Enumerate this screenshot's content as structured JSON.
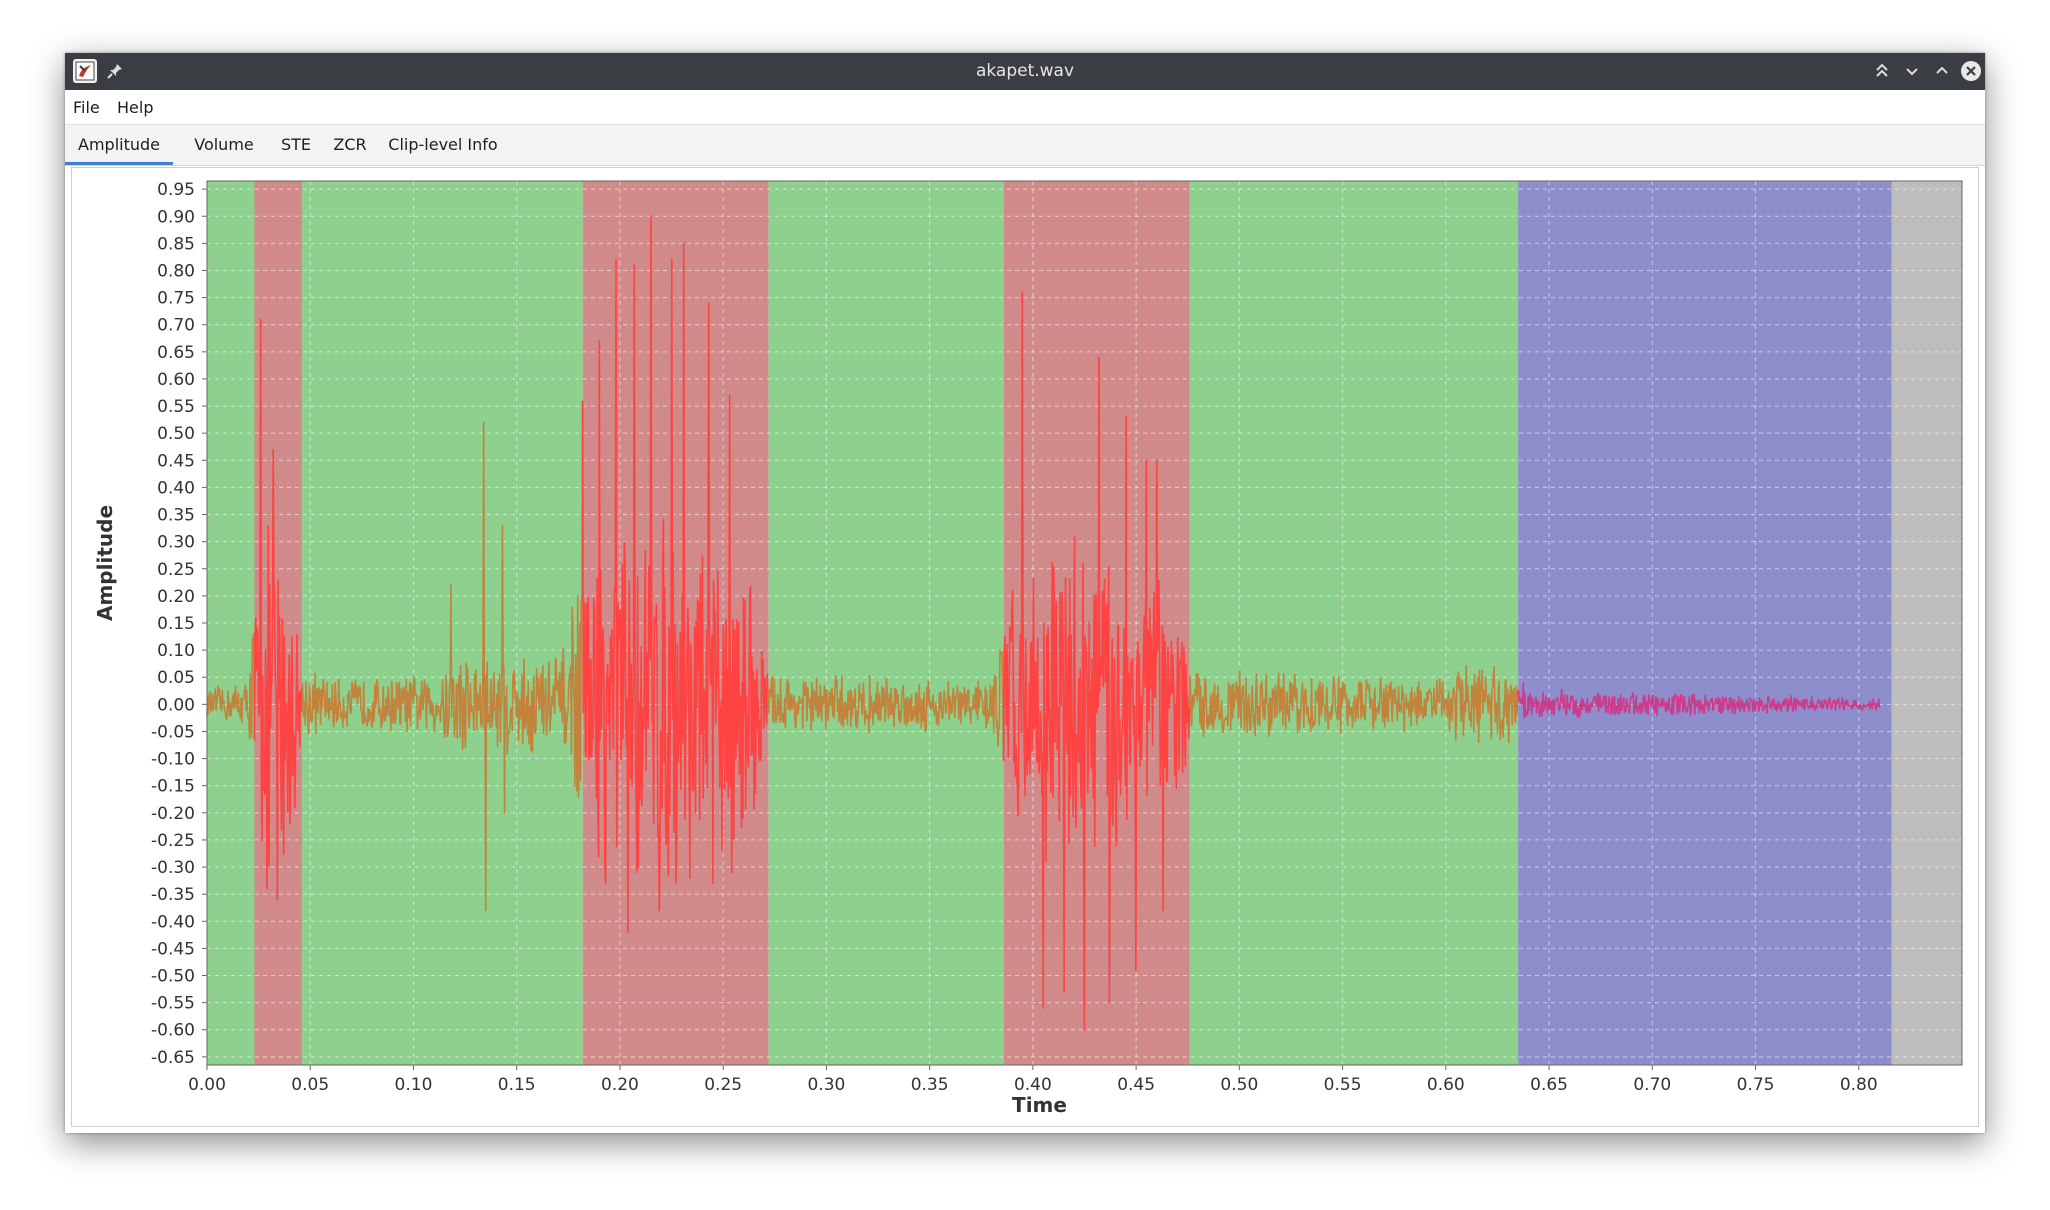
{
  "window": {
    "title": "akapet.wav"
  },
  "menu": {
    "items": [
      "File",
      "Help"
    ]
  },
  "tabs": [
    {
      "label": "Amplitude",
      "active": true
    },
    {
      "label": "Volume",
      "active": false
    },
    {
      "label": "STE",
      "active": false
    },
    {
      "label": "ZCR",
      "active": false
    },
    {
      "label": "Clip-level Info",
      "active": false
    }
  ],
  "icons": {
    "app": "java-app-icon",
    "pin": "pin-icon",
    "keep_above": "keep-above-icon",
    "minimize": "minimize-icon",
    "maximize": "maximize-icon",
    "close": "close-icon"
  },
  "colors": {
    "green_region": "#8ed08e",
    "red_region": "#d08a8a",
    "blue_region": "#8f8ecc",
    "gray_region": "#bdbdbd",
    "waveform_orange": "#c2843c",
    "waveform_red": "#ff4242",
    "waveform_magenta": "#cc3c8c",
    "tab_accent": "#3d7ed1"
  },
  "chart_data": {
    "type": "line",
    "title": "",
    "xlabel": "Time",
    "ylabel": "Amplitude",
    "xlim": [
      0.0,
      0.85
    ],
    "ylim": [
      -0.665,
      0.965
    ],
    "x_ticks": [
      "0.00",
      "0.05",
      "0.10",
      "0.15",
      "0.20",
      "0.25",
      "0.30",
      "0.35",
      "0.40",
      "0.45",
      "0.50",
      "0.55",
      "0.60",
      "0.65",
      "0.70",
      "0.75",
      "0.80"
    ],
    "y_ticks": [
      "0.95",
      "0.90",
      "0.85",
      "0.80",
      "0.75",
      "0.70",
      "0.65",
      "0.60",
      "0.55",
      "0.50",
      "0.45",
      "0.40",
      "0.35",
      "0.30",
      "0.25",
      "0.20",
      "0.15",
      "0.10",
      "0.05",
      "0.00",
      "-0.05",
      "-0.10",
      "-0.15",
      "-0.20",
      "-0.25",
      "-0.30",
      "-0.35",
      "-0.40",
      "-0.45",
      "-0.50",
      "-0.55",
      "-0.60",
      "-0.65"
    ],
    "grid": true,
    "regions": [
      {
        "start": 0.0,
        "end": 0.023,
        "class": "green"
      },
      {
        "start": 0.023,
        "end": 0.046,
        "class": "red"
      },
      {
        "start": 0.046,
        "end": 0.182,
        "class": "green"
      },
      {
        "start": 0.182,
        "end": 0.272,
        "class": "red"
      },
      {
        "start": 0.272,
        "end": 0.386,
        "class": "green"
      },
      {
        "start": 0.386,
        "end": 0.476,
        "class": "red"
      },
      {
        "start": 0.476,
        "end": 0.635,
        "class": "green"
      },
      {
        "start": 0.635,
        "end": 0.816,
        "class": "blue"
      },
      {
        "start": 0.816,
        "end": 0.85,
        "class": "gray"
      }
    ],
    "series": [
      {
        "color": "waveform",
        "end_time": 0.81,
        "envelope": [
          {
            "t": 0.0,
            "a": 0.03
          },
          {
            "t": 0.02,
            "a": 0.05
          },
          {
            "t": 0.023,
            "a": 0.25
          },
          {
            "t": 0.03,
            "a": 0.35
          },
          {
            "t": 0.04,
            "a": 0.3
          },
          {
            "t": 0.046,
            "a": 0.08
          },
          {
            "t": 0.06,
            "a": 0.05
          },
          {
            "t": 0.11,
            "a": 0.06
          },
          {
            "t": 0.12,
            "a": 0.11
          },
          {
            "t": 0.15,
            "a": 0.1
          },
          {
            "t": 0.175,
            "a": 0.12
          },
          {
            "t": 0.182,
            "a": 0.3
          },
          {
            "t": 0.22,
            "a": 0.38
          },
          {
            "t": 0.265,
            "a": 0.25
          },
          {
            "t": 0.272,
            "a": 0.06
          },
          {
            "t": 0.38,
            "a": 0.05
          },
          {
            "t": 0.386,
            "a": 0.2
          },
          {
            "t": 0.42,
            "a": 0.36
          },
          {
            "t": 0.47,
            "a": 0.22
          },
          {
            "t": 0.476,
            "a": 0.07
          },
          {
            "t": 0.6,
            "a": 0.05
          },
          {
            "t": 0.605,
            "a": 0.09
          },
          {
            "t": 0.63,
            "a": 0.08
          },
          {
            "t": 0.64,
            "a": 0.03
          },
          {
            "t": 0.81,
            "a": 0.012
          }
        ],
        "peaks": [
          {
            "t": 0.026,
            "v": 0.71
          },
          {
            "t": 0.029,
            "v": -0.34
          },
          {
            "t": 0.032,
            "v": 0.47
          },
          {
            "t": 0.034,
            "v": -0.36
          },
          {
            "t": 0.04,
            "v": -0.22
          },
          {
            "t": 0.118,
            "v": 0.22
          },
          {
            "t": 0.134,
            "v": 0.52
          },
          {
            "t": 0.135,
            "v": -0.38
          },
          {
            "t": 0.143,
            "v": 0.33
          },
          {
            "t": 0.144,
            "v": -0.2
          },
          {
            "t": 0.177,
            "v": 0.18
          },
          {
            "t": 0.181,
            "v": -0.14
          },
          {
            "t": 0.182,
            "v": 0.56
          },
          {
            "t": 0.19,
            "v": 0.67
          },
          {
            "t": 0.193,
            "v": -0.33
          },
          {
            "t": 0.198,
            "v": 0.82
          },
          {
            "t": 0.204,
            "v": -0.42
          },
          {
            "t": 0.207,
            "v": 0.81
          },
          {
            "t": 0.209,
            "v": -0.3
          },
          {
            "t": 0.215,
            "v": 0.9
          },
          {
            "t": 0.219,
            "v": -0.38
          },
          {
            "t": 0.225,
            "v": 0.82
          },
          {
            "t": 0.231,
            "v": 0.85
          },
          {
            "t": 0.234,
            "v": -0.32
          },
          {
            "t": 0.243,
            "v": 0.74
          },
          {
            "t": 0.245,
            "v": -0.33
          },
          {
            "t": 0.253,
            "v": 0.57
          },
          {
            "t": 0.254,
            "v": -0.31
          },
          {
            "t": 0.263,
            "v": 0.21
          },
          {
            "t": 0.39,
            "v": 0.21
          },
          {
            "t": 0.395,
            "v": 0.76
          },
          {
            "t": 0.405,
            "v": 0.71
          },
          {
            "t": 0.405,
            "v": -0.56
          },
          {
            "t": 0.415,
            "v": 0.72
          },
          {
            "t": 0.415,
            "v": -0.53
          },
          {
            "t": 0.425,
            "v": 0.69
          },
          {
            "t": 0.425,
            "v": -0.6
          },
          {
            "t": 0.432,
            "v": 0.64
          },
          {
            "t": 0.437,
            "v": -0.55
          },
          {
            "t": 0.445,
            "v": 0.53
          },
          {
            "t": 0.45,
            "v": -0.49
          },
          {
            "t": 0.455,
            "v": 0.45
          },
          {
            "t": 0.46,
            "v": 0.45
          },
          {
            "t": 0.463,
            "v": -0.38
          }
        ]
      }
    ]
  }
}
